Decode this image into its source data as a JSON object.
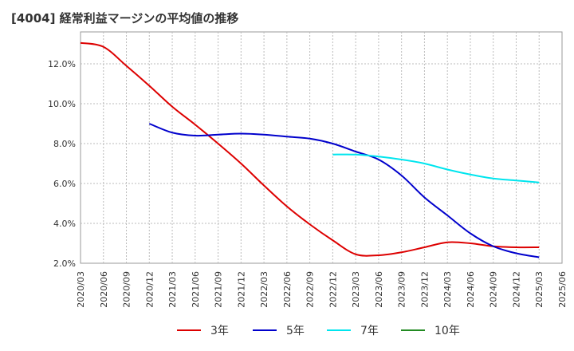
{
  "chart_data": {
    "type": "line",
    "title": "[4004]  経常利益マージンの平均値の推移",
    "xlabel": "",
    "ylabel": "",
    "ylim": [
      2.0,
      13.6
    ],
    "y_ticks": [
      2.0,
      4.0,
      6.0,
      8.0,
      10.0,
      12.0
    ],
    "y_tick_labels": [
      "2.0%",
      "4.0%",
      "6.0%",
      "8.0%",
      "10.0%",
      "12.0%"
    ],
    "x_tick_labels": [
      "2020/03",
      "2020/06",
      "2020/09",
      "2020/12",
      "2021/03",
      "2021/06",
      "2021/09",
      "2021/12",
      "2022/03",
      "2022/06",
      "2022/09",
      "2022/12",
      "2023/03",
      "2023/06",
      "2023/09",
      "2023/12",
      "2024/03",
      "2024/06",
      "2024/09",
      "2024/12",
      "2025/03",
      "2025/06"
    ],
    "grid": true,
    "legend_position": "bottom",
    "series": [
      {
        "name": "3年",
        "color": "#dd0000",
        "points": [
          [
            "2020/03",
            13.05
          ],
          [
            "2020/06",
            12.85
          ],
          [
            "2020/09",
            11.9
          ],
          [
            "2020/12",
            10.9
          ],
          [
            "2021/03",
            9.85
          ],
          [
            "2021/06",
            8.95
          ],
          [
            "2021/09",
            8.0
          ],
          [
            "2021/12",
            7.0
          ],
          [
            "2022/03",
            5.9
          ],
          [
            "2022/06",
            4.85
          ],
          [
            "2022/09",
            3.95
          ],
          [
            "2022/12",
            3.15
          ],
          [
            "2023/03",
            2.45
          ],
          [
            "2023/06",
            2.4
          ],
          [
            "2023/09",
            2.55
          ],
          [
            "2023/12",
            2.8
          ],
          [
            "2024/03",
            3.05
          ],
          [
            "2024/06",
            3.0
          ],
          [
            "2024/09",
            2.85
          ],
          [
            "2024/12",
            2.8
          ],
          [
            "2025/03",
            2.8
          ]
        ]
      },
      {
        "name": "5年",
        "color": "#0000cc",
        "points": [
          [
            "2020/12",
            9.0
          ],
          [
            "2021/03",
            8.55
          ],
          [
            "2021/06",
            8.4
          ],
          [
            "2021/09",
            8.45
          ],
          [
            "2021/12",
            8.5
          ],
          [
            "2022/03",
            8.45
          ],
          [
            "2022/06",
            8.35
          ],
          [
            "2022/09",
            8.25
          ],
          [
            "2022/12",
            8.0
          ],
          [
            "2023/03",
            7.6
          ],
          [
            "2023/06",
            7.2
          ],
          [
            "2023/09",
            6.4
          ],
          [
            "2023/12",
            5.3
          ],
          [
            "2024/03",
            4.4
          ],
          [
            "2024/06",
            3.5
          ],
          [
            "2024/09",
            2.85
          ],
          [
            "2024/12",
            2.5
          ],
          [
            "2025/03",
            2.3
          ]
        ]
      },
      {
        "name": "7年",
        "color": "#00e5ee",
        "points": [
          [
            "2022/12",
            7.45
          ],
          [
            "2023/03",
            7.45
          ],
          [
            "2023/06",
            7.35
          ],
          [
            "2023/09",
            7.2
          ],
          [
            "2023/12",
            7.0
          ],
          [
            "2024/03",
            6.7
          ],
          [
            "2024/06",
            6.45
          ],
          [
            "2024/09",
            6.25
          ],
          [
            "2024/12",
            6.15
          ],
          [
            "2025/03",
            6.05
          ]
        ]
      },
      {
        "name": "10年",
        "color": "#228b22",
        "points": []
      }
    ]
  }
}
